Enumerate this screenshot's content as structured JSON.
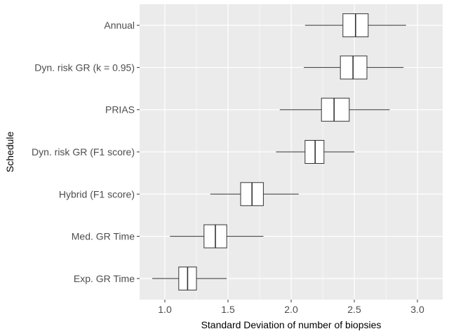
{
  "chart_data": {
    "type": "boxplot",
    "orientation": "horizontal",
    "xlabel": "Standard Deviation of number of biopsies",
    "ylabel": "Schedule",
    "xlim": [
      0.8,
      3.2
    ],
    "xticks": [
      1.0,
      1.5,
      2.0,
      2.5,
      3.0
    ],
    "xtick_labels": [
      "1.0",
      "1.5",
      "2.0",
      "2.5",
      "3.0"
    ],
    "grid": true,
    "legend": "none",
    "colors": {
      "panel": "#ebebeb",
      "grid": "#ffffff",
      "box_fill": "#ffffff",
      "box_line": "#333333",
      "tick_text": "#4d4d4d"
    },
    "categories": [
      "Annual",
      "Dyn. risk GR (k = 0.95)",
      "PRIAS",
      "Dyn. risk GR (F1 score)",
      "Hybrid (F1 score)",
      "Med. GR Time",
      "Exp. GR Time"
    ],
    "boxes": [
      {
        "label": "Annual",
        "whisker_low": 2.11,
        "q1": 2.41,
        "median": 2.51,
        "q3": 2.61,
        "whisker_high": 2.91
      },
      {
        "label": "Dyn. risk GR (k = 0.95)",
        "whisker_low": 2.1,
        "q1": 2.39,
        "median": 2.49,
        "q3": 2.6,
        "whisker_high": 2.89
      },
      {
        "label": "PRIAS",
        "whisker_low": 1.91,
        "q1": 2.24,
        "median": 2.34,
        "q3": 2.46,
        "whisker_high": 2.78
      },
      {
        "label": "Dyn. risk GR (F1 score)",
        "whisker_low": 1.88,
        "q1": 2.11,
        "median": 2.19,
        "q3": 2.26,
        "whisker_high": 2.5
      },
      {
        "label": "Hybrid (F1 score)",
        "whisker_low": 1.36,
        "q1": 1.6,
        "median": 1.69,
        "q3": 1.78,
        "whisker_high": 2.06
      },
      {
        "label": "Med. GR Time",
        "whisker_low": 1.04,
        "q1": 1.31,
        "median": 1.4,
        "q3": 1.49,
        "whisker_high": 1.78
      },
      {
        "label": "Exp. GR Time",
        "whisker_low": 0.9,
        "q1": 1.11,
        "median": 1.18,
        "q3": 1.25,
        "whisker_high": 1.49
      }
    ]
  }
}
